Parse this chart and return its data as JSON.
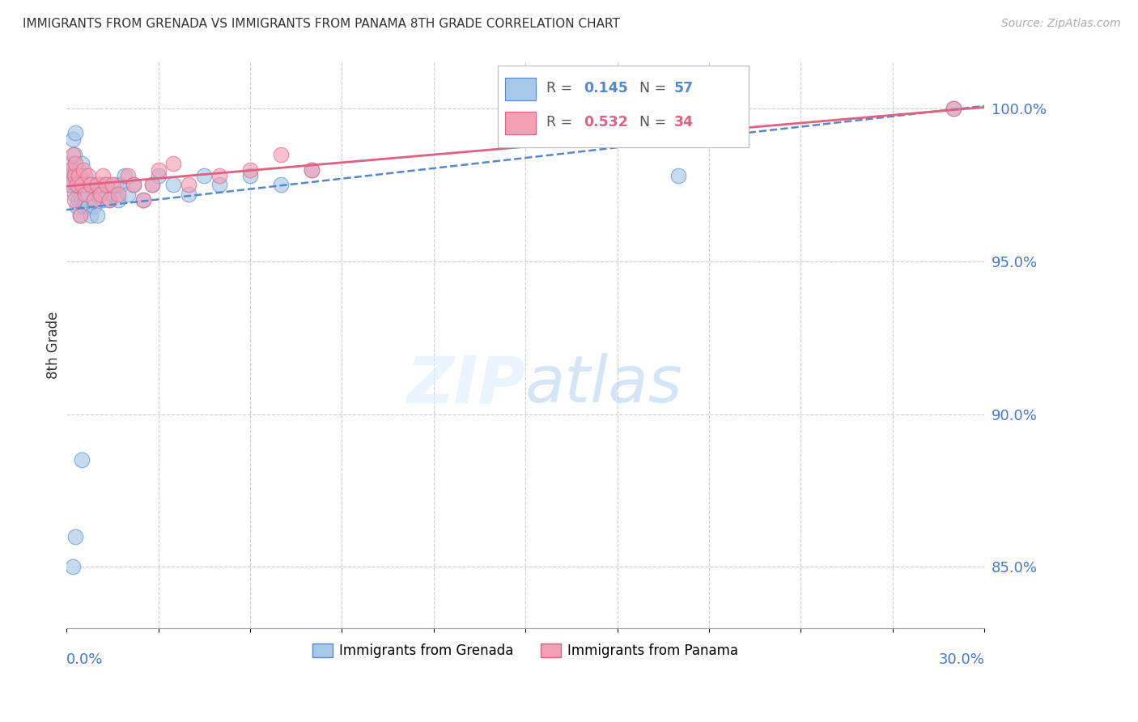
{
  "title": "IMMIGRANTS FROM GRENADA VS IMMIGRANTS FROM PANAMA 8TH GRADE CORRELATION CHART",
  "source": "Source: ZipAtlas.com",
  "ylabel": "8th Grade",
  "legend_label1": "Immigrants from Grenada",
  "legend_label2": "Immigrants from Panama",
  "R1": 0.145,
  "N1": 57,
  "R2": 0.532,
  "N2": 34,
  "color_blue": "#a8c8e8",
  "color_pink": "#f4a0b5",
  "color_blue_line": "#5588cc",
  "color_pink_line": "#e06080",
  "color_dashed": "#aaaacc",
  "color_axis_labels": "#4477cc",
  "color_title": "#333333",
  "grenada_x": [
    0.1,
    0.15,
    0.15,
    0.2,
    0.2,
    0.25,
    0.25,
    0.25,
    0.3,
    0.3,
    0.35,
    0.35,
    0.4,
    0.4,
    0.45,
    0.45,
    0.5,
    0.5,
    0.55,
    0.55,
    0.6,
    0.6,
    0.65,
    0.7,
    0.7,
    0.8,
    0.8,
    0.9,
    0.9,
    1.0,
    1.0,
    1.1,
    1.2,
    1.3,
    1.4,
    1.5,
    1.6,
    1.7,
    1.8,
    1.9,
    2.0,
    2.2,
    2.5,
    2.8,
    3.0,
    3.5,
    4.0,
    4.5,
    5.0,
    6.0,
    7.0,
    8.0,
    0.5,
    0.3,
    0.2,
    20.0,
    29.0
  ],
  "grenada_y": [
    98.0,
    98.2,
    97.8,
    99.0,
    97.5,
    98.5,
    97.8,
    97.2,
    99.2,
    98.0,
    97.5,
    96.8,
    98.0,
    97.0,
    97.8,
    96.5,
    98.2,
    97.0,
    97.5,
    96.8,
    97.8,
    97.0,
    97.5,
    97.2,
    96.8,
    97.5,
    96.5,
    97.0,
    96.8,
    97.2,
    96.5,
    97.5,
    97.0,
    97.5,
    97.0,
    97.2,
    97.5,
    97.0,
    97.5,
    97.8,
    97.2,
    97.5,
    97.0,
    97.5,
    97.8,
    97.5,
    97.2,
    97.8,
    97.5,
    97.8,
    97.5,
    98.0,
    88.5,
    86.0,
    85.0,
    97.8,
    100.0
  ],
  "panama_x": [
    0.1,
    0.15,
    0.2,
    0.25,
    0.25,
    0.3,
    0.35,
    0.4,
    0.45,
    0.5,
    0.55,
    0.6,
    0.7,
    0.8,
    0.9,
    1.0,
    1.1,
    1.2,
    1.3,
    1.4,
    1.5,
    1.7,
    2.0,
    2.2,
    2.5,
    2.8,
    3.0,
    3.5,
    4.0,
    5.0,
    6.0,
    7.0,
    8.0,
    29.0
  ],
  "panama_y": [
    97.5,
    98.0,
    98.5,
    97.8,
    97.0,
    98.2,
    97.5,
    97.8,
    96.5,
    97.5,
    98.0,
    97.2,
    97.8,
    97.5,
    97.0,
    97.5,
    97.2,
    97.8,
    97.5,
    97.0,
    97.5,
    97.2,
    97.8,
    97.5,
    97.0,
    97.5,
    98.0,
    98.2,
    97.5,
    97.8,
    98.0,
    98.5,
    98.0,
    100.0
  ],
  "xmin": 0.0,
  "xmax": 30.0,
  "ymin": 83.0,
  "ymax": 101.5,
  "yticks": [
    100.0,
    95.0,
    90.0,
    85.0
  ],
  "ytick_labels": [
    "100.0%",
    "95.0%",
    "90.0%",
    "85.0%"
  ],
  "xtick_positions": [
    0,
    3,
    6,
    9,
    12,
    15,
    18,
    21,
    24,
    27,
    30
  ]
}
